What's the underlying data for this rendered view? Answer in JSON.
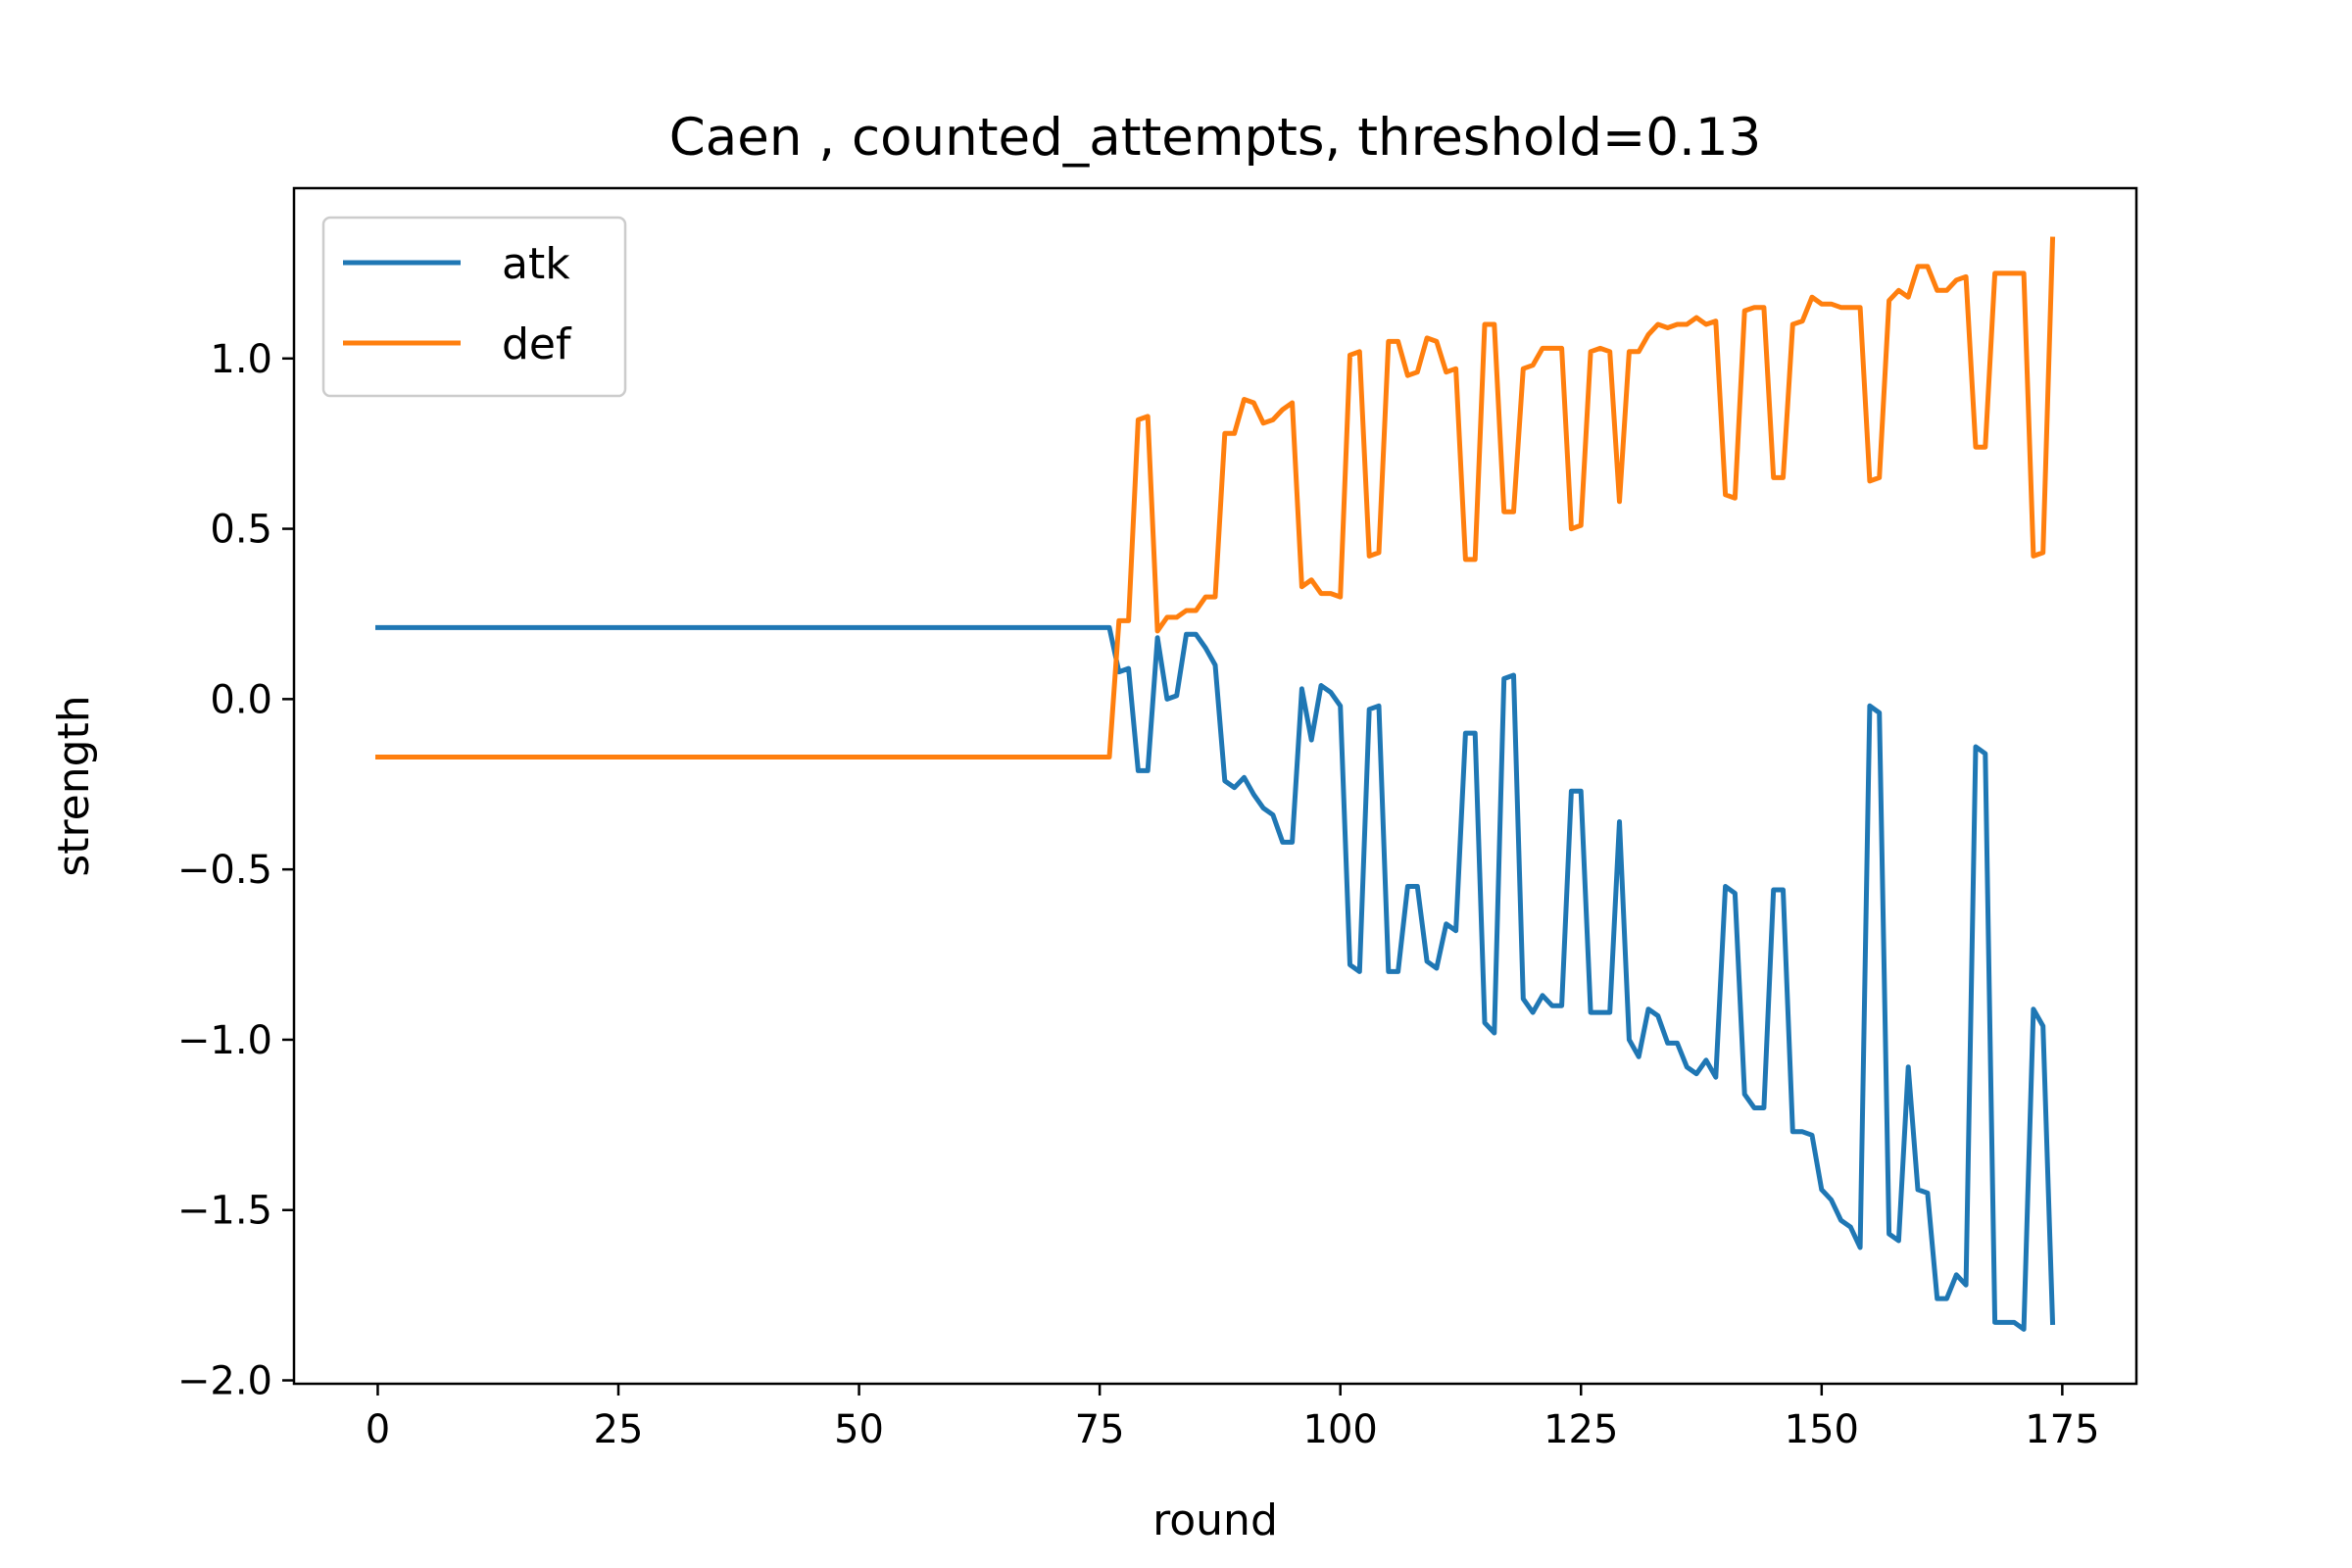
{
  "chart_data": {
    "type": "line",
    "title": "Caen , counted_attempts, threshold=0.13",
    "xlabel": "round",
    "ylabel": "strength",
    "xlim": [
      -8.7,
      182.7
    ],
    "ylim": [
      -2.01,
      1.5
    ],
    "xticks": [
      0,
      25,
      50,
      75,
      100,
      125,
      150,
      175
    ],
    "yticks": [
      1.0,
      0.5,
      0.0,
      -0.5,
      -1.0,
      -1.5,
      -2.0
    ],
    "xtick_labels": [
      "0",
      "25",
      "50",
      "75",
      "100",
      "125",
      "150",
      "175"
    ],
    "ytick_labels": [
      "1.0",
      "0.5",
      "0.0",
      "−0.5",
      "−1.0",
      "−1.5",
      "−2.0"
    ],
    "grid": false,
    "legend_position": "upper-left",
    "series": [
      {
        "name": "atk",
        "color": "#1f77b4",
        "points": [
          [
            0,
            0.21
          ],
          [
            76,
            0.21
          ],
          [
            77,
            0.08
          ],
          [
            78,
            0.09
          ],
          [
            79,
            -0.21
          ],
          [
            80,
            -0.21
          ],
          [
            81,
            0.18
          ],
          [
            82,
            0.0
          ],
          [
            83,
            0.01
          ],
          [
            84,
            0.19
          ],
          [
            85,
            0.19
          ],
          [
            86,
            0.15
          ],
          [
            87,
            0.1
          ],
          [
            88,
            -0.24
          ],
          [
            89,
            -0.26
          ],
          [
            90,
            -0.23
          ],
          [
            91,
            -0.28
          ],
          [
            92,
            -0.32
          ],
          [
            93,
            -0.34
          ],
          [
            94,
            -0.42
          ],
          [
            95,
            -0.42
          ],
          [
            96,
            0.03
          ],
          [
            97,
            -0.12
          ],
          [
            98,
            0.04
          ],
          [
            99,
            0.02
          ],
          [
            100,
            -0.02
          ],
          [
            101,
            -0.78
          ],
          [
            102,
            -0.8
          ],
          [
            103,
            -0.03
          ],
          [
            104,
            -0.02
          ],
          [
            105,
            -0.8
          ],
          [
            106,
            -0.8
          ],
          [
            107,
            -0.55
          ],
          [
            108,
            -0.55
          ],
          [
            109,
            -0.77
          ],
          [
            110,
            -0.79
          ],
          [
            111,
            -0.66
          ],
          [
            112,
            -0.68
          ],
          [
            113,
            -0.1
          ],
          [
            114,
            -0.1
          ],
          [
            115,
            -0.95
          ],
          [
            116,
            -0.98
          ],
          [
            117,
            0.06
          ],
          [
            118,
            0.07
          ],
          [
            119,
            -0.88
          ],
          [
            120,
            -0.92
          ],
          [
            121,
            -0.87
          ],
          [
            122,
            -0.9
          ],
          [
            123,
            -0.9
          ],
          [
            124,
            -0.27
          ],
          [
            125,
            -0.27
          ],
          [
            126,
            -0.92
          ],
          [
            127,
            -0.92
          ],
          [
            128,
            -0.92
          ],
          [
            129,
            -0.36
          ],
          [
            130,
            -1.0
          ],
          [
            131,
            -1.05
          ],
          [
            132,
            -0.91
          ],
          [
            133,
            -0.93
          ],
          [
            134,
            -1.01
          ],
          [
            135,
            -1.01
          ],
          [
            136,
            -1.08
          ],
          [
            137,
            -1.1
          ],
          [
            138,
            -1.06
          ],
          [
            139,
            -1.11
          ],
          [
            140,
            -0.55
          ],
          [
            141,
            -0.57
          ],
          [
            142,
            -1.16
          ],
          [
            143,
            -1.2
          ],
          [
            144,
            -1.2
          ],
          [
            145,
            -0.56
          ],
          [
            146,
            -0.56
          ],
          [
            147,
            -1.27
          ],
          [
            148,
            -1.27
          ],
          [
            149,
            -1.28
          ],
          [
            150,
            -1.44
          ],
          [
            151,
            -1.47
          ],
          [
            152,
            -1.53
          ],
          [
            153,
            -1.55
          ],
          [
            154,
            -1.61
          ],
          [
            155,
            -0.02
          ],
          [
            156,
            -0.04
          ],
          [
            157,
            -1.57
          ],
          [
            158,
            -1.59
          ],
          [
            159,
            -1.08
          ],
          [
            160,
            -1.44
          ],
          [
            161,
            -1.45
          ],
          [
            162,
            -1.76
          ],
          [
            163,
            -1.76
          ],
          [
            164,
            -1.69
          ],
          [
            165,
            -1.72
          ],
          [
            166,
            -0.14
          ],
          [
            167,
            -0.16
          ],
          [
            168,
            -1.83
          ],
          [
            169,
            -1.83
          ],
          [
            170,
            -1.83
          ],
          [
            171,
            -1.85
          ],
          [
            172,
            -0.91
          ],
          [
            173,
            -0.96
          ],
          [
            174,
            -1.83
          ]
        ]
      },
      {
        "name": "def",
        "color": "#ff7f0e",
        "points": [
          [
            0,
            -0.17
          ],
          [
            76,
            -0.17
          ],
          [
            77,
            0.23
          ],
          [
            78,
            0.23
          ],
          [
            79,
            0.82
          ],
          [
            80,
            0.83
          ],
          [
            81,
            0.2
          ],
          [
            82,
            0.24
          ],
          [
            83,
            0.24
          ],
          [
            84,
            0.26
          ],
          [
            85,
            0.26
          ],
          [
            86,
            0.3
          ],
          [
            87,
            0.3
          ],
          [
            88,
            0.78
          ],
          [
            89,
            0.78
          ],
          [
            90,
            0.88
          ],
          [
            91,
            0.87
          ],
          [
            92,
            0.81
          ],
          [
            93,
            0.82
          ],
          [
            94,
            0.85
          ],
          [
            95,
            0.87
          ],
          [
            96,
            0.33
          ],
          [
            97,
            0.35
          ],
          [
            98,
            0.31
          ],
          [
            99,
            0.31
          ],
          [
            100,
            0.3
          ],
          [
            101,
            1.01
          ],
          [
            102,
            1.02
          ],
          [
            103,
            0.42
          ],
          [
            104,
            0.43
          ],
          [
            105,
            1.05
          ],
          [
            106,
            1.05
          ],
          [
            107,
            0.95
          ],
          [
            108,
            0.96
          ],
          [
            109,
            1.06
          ],
          [
            110,
            1.05
          ],
          [
            111,
            0.96
          ],
          [
            112,
            0.97
          ],
          [
            113,
            0.41
          ],
          [
            114,
            0.41
          ],
          [
            115,
            1.1
          ],
          [
            116,
            1.1
          ],
          [
            117,
            0.55
          ],
          [
            118,
            0.55
          ],
          [
            119,
            0.97
          ],
          [
            120,
            0.98
          ],
          [
            121,
            1.03
          ],
          [
            122,
            1.03
          ],
          [
            123,
            1.03
          ],
          [
            124,
            0.5
          ],
          [
            125,
            0.51
          ],
          [
            126,
            1.02
          ],
          [
            127,
            1.03
          ],
          [
            128,
            1.02
          ],
          [
            129,
            0.58
          ],
          [
            130,
            1.02
          ],
          [
            131,
            1.02
          ],
          [
            132,
            1.07
          ],
          [
            133,
            1.1
          ],
          [
            134,
            1.09
          ],
          [
            135,
            1.1
          ],
          [
            136,
            1.1
          ],
          [
            137,
            1.12
          ],
          [
            138,
            1.1
          ],
          [
            139,
            1.11
          ],
          [
            140,
            0.6
          ],
          [
            141,
            0.59
          ],
          [
            142,
            1.14
          ],
          [
            143,
            1.15
          ],
          [
            144,
            1.15
          ],
          [
            145,
            0.65
          ],
          [
            146,
            0.65
          ],
          [
            147,
            1.1
          ],
          [
            148,
            1.11
          ],
          [
            149,
            1.18
          ],
          [
            150,
            1.16
          ],
          [
            151,
            1.16
          ],
          [
            152,
            1.15
          ],
          [
            153,
            1.15
          ],
          [
            154,
            1.15
          ],
          [
            155,
            0.64
          ],
          [
            156,
            0.65
          ],
          [
            157,
            1.17
          ],
          [
            158,
            1.2
          ],
          [
            159,
            1.18
          ],
          [
            160,
            1.27
          ],
          [
            161,
            1.27
          ],
          [
            162,
            1.2
          ],
          [
            163,
            1.2
          ],
          [
            164,
            1.23
          ],
          [
            165,
            1.24
          ],
          [
            166,
            0.74
          ],
          [
            167,
            0.74
          ],
          [
            168,
            1.25
          ],
          [
            169,
            1.25
          ],
          [
            170,
            1.25
          ],
          [
            171,
            1.25
          ],
          [
            172,
            0.42
          ],
          [
            173,
            0.43
          ],
          [
            174,
            1.35
          ]
        ]
      }
    ]
  }
}
